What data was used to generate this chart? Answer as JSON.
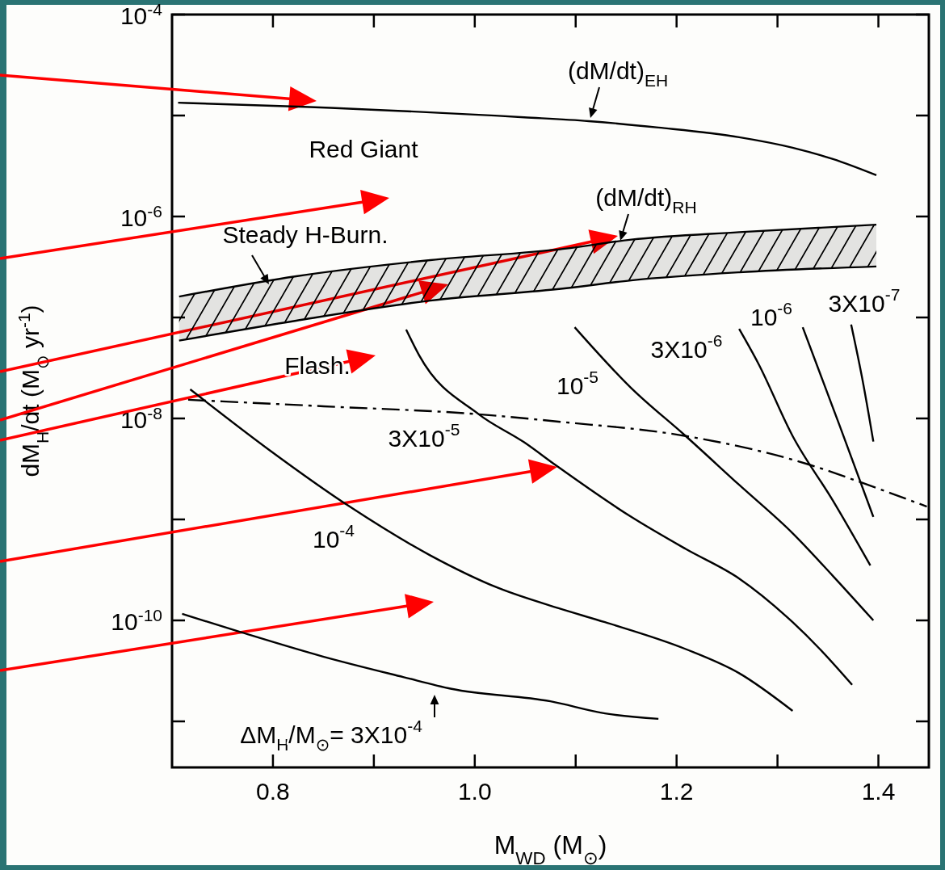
{
  "chart_data": {
    "type": "line",
    "xlabel": "M$_{WD}$ (M$_{⊙}$)",
    "ylabel": "dM$_{H}$/dt  (M$_{⊙}$ yr$^{-1}$)",
    "log": "y",
    "xlim": [
      0.7,
      1.45
    ],
    "ylim": [
      3.5e-12,
      0.0001
    ],
    "xticks": [
      {
        "value": 0.8,
        "label": "0.8"
      },
      {
        "value": 0.9,
        "label": null
      },
      {
        "value": 1.0,
        "label": "1.0"
      },
      {
        "value": 1.1,
        "label": null
      },
      {
        "value": 1.2,
        "label": "1.2"
      },
      {
        "value": 1.3,
        "label": null
      },
      {
        "value": 1.4,
        "label": "1.4"
      }
    ],
    "yticks": [
      {
        "value": 0.0001,
        "label": "10$^{-4}$"
      },
      {
        "value": 1e-05,
        "label": null
      },
      {
        "value": 1e-06,
        "label": "10$^{-6}$"
      },
      {
        "value": 1e-07,
        "label": null
      },
      {
        "value": 1e-08,
        "label": "10$^{-8}$"
      },
      {
        "value": 1e-09,
        "label": null
      },
      {
        "value": 1e-10,
        "label": "10$^{-10}$"
      },
      {
        "value": 1e-11,
        "label": null
      }
    ],
    "series": [
      {
        "color": "#000000",
        "x": [
          0.706,
          0.831,
          1.049,
          1.113,
          1.182,
          1.262,
          1.315,
          1.355,
          1.398
        ],
        "values": [
          1.34e-05,
          1.22e-05,
          9.6e-06,
          8.8e-06,
          7.6e-06,
          6.1e-06,
          4.8e-06,
          3.7e-06,
          2.56e-06
        ]
      },
      {
        "color": "#000000",
        "x": [
          0.707,
          0.823,
          0.956,
          1.089,
          1.155,
          1.262,
          1.398
        ],
        "values": [
          1.61e-07,
          2.56e-07,
          3.7e-07,
          4.8e-07,
          5.9e-07,
          7e-07,
          8.3e-07
        ],
        "lower": [
          5.9e-08,
          9.3e-08,
          1.47e-07,
          1.94e-07,
          2.33e-07,
          2.8e-07,
          3.2e-07
        ],
        "upper": [
          1.61e-07,
          2.56e-07,
          3.7e-07,
          4.8e-07,
          5.9e-07,
          7e-07,
          8.3e-07
        ]
      },
      {
        "color": "#000000",
        "line_style": "dashed",
        "x": [
          0.716,
          0.85,
          1.004,
          1.083,
          1.209,
          1.331,
          1.379,
          1.448
        ],
        "values": [
          1.53e-08,
          1.32e-08,
          1.1e-08,
          9.3e-09,
          6.7e-09,
          3.5e-09,
          2.4e-09,
          1.34e-09
        ]
      },
      {
        "color": "#000000",
        "x": [
          0.71,
          0.769,
          0.849,
          0.929,
          0.977,
          1.075,
          1.129,
          1.182
        ],
        "values": [
          1.16e-10,
          7.6e-11,
          4.4e-11,
          2.75e-11,
          2.1e-11,
          1.58e-11,
          1.2e-11,
          1.06e-11
        ]
      },
      {
        "color": "#000000",
        "x": [
          0.718,
          0.796,
          0.876,
          0.956,
          1.023,
          1.083,
          1.129,
          1.209,
          1.262,
          1.315
        ],
        "values": [
          1.94e-08,
          4.9e-09,
          1.34e-09,
          4.4e-10,
          2.1e-10,
          1.32e-10,
          9.6e-11,
          5.2e-11,
          3e-11,
          1.27e-11
        ]
      },
      {
        "color": "#000000",
        "x": [
          0.932,
          0.945,
          1.004,
          1.049,
          1.081,
          1.155,
          1.209,
          1.262,
          1.315,
          1.342,
          1.374
        ],
        "values": [
          7.6e-08,
          4.2e-08,
          1.1e-08,
          5.8e-09,
          3.4e-09,
          1.06e-09,
          5.1e-10,
          2.6e-10,
          9.6e-11,
          5.2e-11,
          2.3e-11
        ]
      },
      {
        "color": "#000000",
        "x": [
          1.099,
          1.155,
          1.209,
          1.262,
          1.315,
          1.355,
          1.395
        ],
        "values": [
          8e-08,
          2e-08,
          6.7e-09,
          2.2e-09,
          7.3e-10,
          2.75e-10,
          1e-10
        ]
      },
      {
        "color": "#000000",
        "x": [
          1.262,
          1.281,
          1.315,
          1.355,
          1.392
        ],
        "values": [
          7.7e-08,
          3.5e-08,
          6.7e-09,
          1.53e-09,
          3.5e-10
        ]
      },
      {
        "color": "#000000",
        "x": [
          1.325,
          1.361,
          1.395
        ],
        "values": [
          8e-08,
          8.8e-09,
          1.06e-09
        ]
      },
      {
        "color": "#000000",
        "x": [
          1.373,
          1.385,
          1.395
        ],
        "values": [
          8.5e-08,
          2.2e-08,
          5.9e-09
        ]
      }
    ],
    "annotations": [
      "(dM/dt)$_{EH}$",
      "Red Giant",
      "(dM/dt)$_{RH}$",
      "Steady H-Burn.",
      "Flash.",
      "10$^{-6}$",
      "3X10$^{-7}$",
      "3X10$^{-6}$",
      "10$^{-5}$",
      "3X10$^{-5}$",
      "10$^{-4}$",
      "ΔM$_{H}$/M$_{⊙}$= 3X10$^{-4}$"
    ]
  }
}
